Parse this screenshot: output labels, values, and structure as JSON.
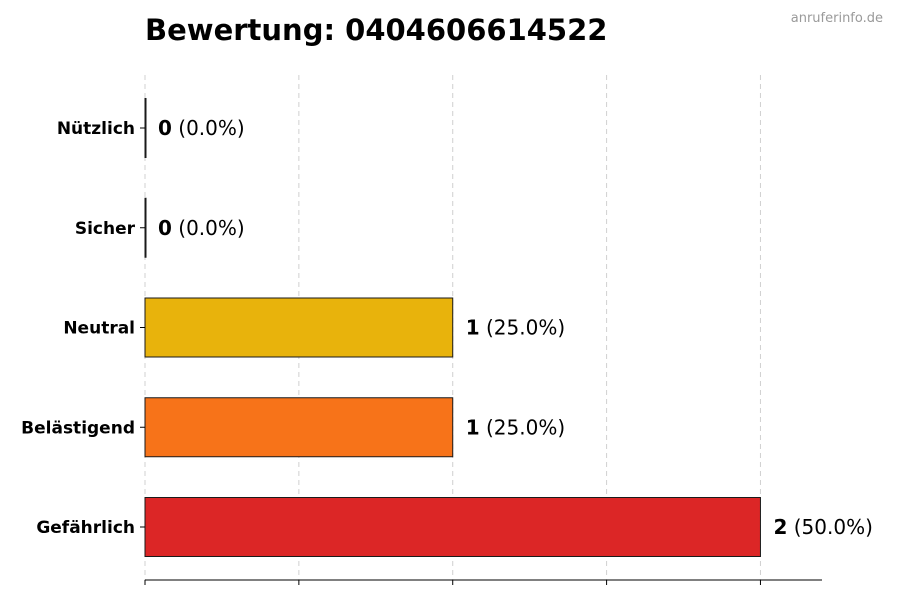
{
  "title": "Bewertung: 0404606614522",
  "watermark": "anruferinfo.de",
  "chart_data": {
    "type": "bar",
    "orientation": "horizontal",
    "title": "Bewertung: 0404606614522",
    "categories": [
      "Nützlich",
      "Sicher",
      "Neutral",
      "Belästigend",
      "Gefährlich"
    ],
    "values": [
      0,
      0,
      1,
      1,
      2
    ],
    "percentages": [
      "0.0%",
      "0.0%",
      "25.0%",
      "25.0%",
      "50.0%"
    ],
    "colors": [
      "#2e8b57",
      "#4caf50",
      "#e8b30c",
      "#f77319",
      "#dc2626"
    ],
    "xlim": [
      0,
      2.2
    ],
    "xticks": [
      0,
      0.5,
      1,
      1.5,
      2
    ],
    "xtick_labels_visible": false,
    "grid": "x-dashed",
    "xlabel": "",
    "ylabel": ""
  }
}
